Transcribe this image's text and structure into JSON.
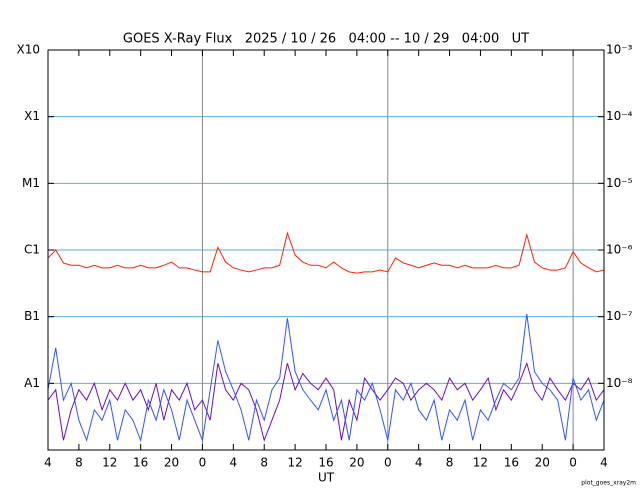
{
  "chart_data": {
    "type": "line",
    "title": "GOES X-Ray Flux   2025 / 10 / 26   04:00 -- 10 / 29   04:00   UT",
    "x_label": "UT",
    "footnote": "plot_goes_xray2m",
    "log_scale": true,
    "grid": true,
    "x": [
      0,
      1,
      2,
      3,
      4,
      5,
      6,
      7,
      8,
      9,
      10,
      11,
      12,
      13,
      14,
      15,
      16,
      17,
      18,
      19,
      20,
      21,
      22,
      23,
      24,
      25,
      26,
      27,
      28,
      29,
      30,
      31,
      32,
      33,
      34,
      35,
      36,
      37,
      38,
      39,
      40,
      41,
      42,
      43,
      44,
      45,
      46,
      47,
      48,
      49,
      50,
      51,
      52,
      53,
      54,
      55,
      56,
      57,
      58,
      59,
      60,
      61,
      62,
      63,
      64,
      65,
      66,
      67,
      68,
      69,
      70,
      71,
      72
    ],
    "xlim": [
      0,
      72
    ],
    "xticks": [
      {
        "value": 0,
        "label": "4"
      },
      {
        "value": 4,
        "label": "8"
      },
      {
        "value": 8,
        "label": "12"
      },
      {
        "value": 12,
        "label": "16"
      },
      {
        "value": 16,
        "label": "20"
      },
      {
        "value": 20,
        "label": "0"
      },
      {
        "value": 24,
        "label": "4"
      },
      {
        "value": 28,
        "label": "8"
      },
      {
        "value": 32,
        "label": "12"
      },
      {
        "value": 36,
        "label": "16"
      },
      {
        "value": 40,
        "label": "20"
      },
      {
        "value": 44,
        "label": "0"
      },
      {
        "value": 48,
        "label": "4"
      },
      {
        "value": 52,
        "label": "8"
      },
      {
        "value": 56,
        "label": "12"
      },
      {
        "value": 60,
        "label": "16"
      },
      {
        "value": 64,
        "label": "20"
      },
      {
        "value": 68,
        "label": "0"
      },
      {
        "value": 72,
        "label": "4"
      }
    ],
    "day_lines": [
      20,
      44,
      68
    ],
    "ylim": [
      1e-09,
      0.001
    ],
    "yticks": [
      {
        "value": 1e-08,
        "label": "A1"
      },
      {
        "value": 1e-07,
        "label": "B1"
      },
      {
        "value": 1e-06,
        "label": "C1"
      },
      {
        "value": 1e-05,
        "label": "M1"
      },
      {
        "value": 0.0001,
        "label": "X1"
      },
      {
        "value": 0.001,
        "label": "X10"
      }
    ],
    "y2lim": [
      1e-09,
      0.001
    ],
    "y2ticks": [
      {
        "value": 1e-08,
        "label": "10⁻⁸"
      },
      {
        "value": 1e-07,
        "label": "10⁻⁷"
      },
      {
        "value": 1e-06,
        "label": "10⁻⁶"
      },
      {
        "value": 1e-05,
        "label": "10⁻⁵"
      },
      {
        "value": 0.0001,
        "label": "10⁻⁴"
      },
      {
        "value": 0.001,
        "label": "10⁻³"
      }
    ],
    "series": [
      {
        "color": "#ff2200",
        "values": [
          7.6e-07,
          1e-06,
          6.4e-07,
          5.9e-07,
          5.9e-07,
          5.4e-07,
          5.9e-07,
          5.4e-07,
          5.4e-07,
          5.9e-07,
          5.4e-07,
          5.4e-07,
          5.9e-07,
          5.4e-07,
          5.4e-07,
          5.9e-07,
          6.6e-07,
          5.4e-07,
          5.4e-07,
          5e-07,
          4.7e-07,
          4.7e-07,
          1.1e-06,
          6.6e-07,
          5.4e-07,
          5e-07,
          4.7e-07,
          5e-07,
          5.4e-07,
          5.4e-07,
          5.9e-07,
          1.8e-06,
          8.4e-07,
          6.6e-07,
          5.9e-07,
          5.9e-07,
          5.4e-07,
          6.6e-07,
          5.4e-07,
          4.7e-07,
          4.5e-07,
          4.7e-07,
          4.7e-07,
          5e-07,
          4.7e-07,
          7.6e-07,
          6.4e-07,
          5.9e-07,
          5.4e-07,
          5.9e-07,
          6.4e-07,
          5.9e-07,
          5.9e-07,
          5.4e-07,
          5.9e-07,
          5.4e-07,
          5.4e-07,
          5.4e-07,
          5.9e-07,
          5.4e-07,
          5.4e-07,
          5.9e-07,
          1.7e-06,
          6.6e-07,
          5.4e-07,
          5e-07,
          5e-07,
          5.4e-07,
          9.4e-07,
          6.4e-07,
          5.4e-07,
          4.7e-07,
          5e-07
        ]
      },
      {
        "color": "#6a0dc9",
        "values": [
          5.6e-09,
          8e-09,
          1.4e-09,
          4e-09,
          8e-09,
          5.6e-09,
          1e-08,
          4e-09,
          8e-09,
          5.6e-09,
          1e-08,
          5.6e-09,
          8e-09,
          4e-09,
          1e-08,
          2.8e-09,
          8e-09,
          5.6e-09,
          1e-08,
          4e-09,
          5.6e-09,
          2.8e-09,
          2e-08,
          8e-09,
          5.6e-09,
          1e-08,
          8e-09,
          4e-09,
          1.4e-09,
          2.8e-09,
          5.6e-09,
          2e-08,
          8e-09,
          1.4e-08,
          1e-08,
          8e-09,
          1.2e-08,
          8e-09,
          1.4e-09,
          5.6e-09,
          2.8e-09,
          1.2e-08,
          8e-09,
          5.6e-09,
          8e-09,
          1.2e-08,
          1e-08,
          5.6e-09,
          8e-09,
          1e-08,
          8e-09,
          5.6e-09,
          1.2e-08,
          8e-09,
          1e-08,
          5.6e-09,
          8e-09,
          1.2e-08,
          4e-09,
          8e-09,
          5.6e-09,
          1e-08,
          2e-08,
          8e-09,
          5.6e-09,
          1.2e-08,
          8e-09,
          5.6e-09,
          1e-08,
          8e-09,
          1.2e-08,
          5.6e-09,
          8e-09
        ]
      },
      {
        "color": "#3355ff",
        "values": [
          8e-09,
          3.4e-08,
          5.6e-09,
          1e-08,
          2.8e-09,
          1.4e-09,
          4e-09,
          2.8e-09,
          5.6e-09,
          1.4e-09,
          4e-09,
          2.8e-09,
          1.4e-09,
          5.6e-09,
          2.8e-09,
          8e-09,
          4e-09,
          1.4e-09,
          5.6e-09,
          2.8e-09,
          1.4e-09,
          8e-09,
          4.4e-08,
          1.5e-08,
          8e-09,
          4e-09,
          1.4e-09,
          5.6e-09,
          2.8e-09,
          8e-09,
          1.2e-08,
          9.5e-08,
          1.5e-08,
          8e-09,
          5.6e-09,
          4e-09,
          8e-09,
          2.8e-09,
          5.6e-09,
          1.4e-09,
          8e-09,
          5.6e-09,
          1e-08,
          4e-09,
          1.4e-09,
          8e-09,
          5.6e-09,
          1e-08,
          4e-09,
          2.8e-09,
          5.6e-09,
          1.4e-09,
          4e-09,
          2.8e-09,
          5.6e-09,
          1.4e-09,
          4e-09,
          2.8e-09,
          5.6e-09,
          1e-08,
          8e-09,
          1.2e-08,
          1.1e-07,
          1.5e-08,
          1e-08,
          8e-09,
          5.6e-09,
          1.4e-09,
          1.2e-08,
          5.6e-09,
          8e-09,
          2.8e-09,
          5.6e-09
        ]
      }
    ]
  }
}
